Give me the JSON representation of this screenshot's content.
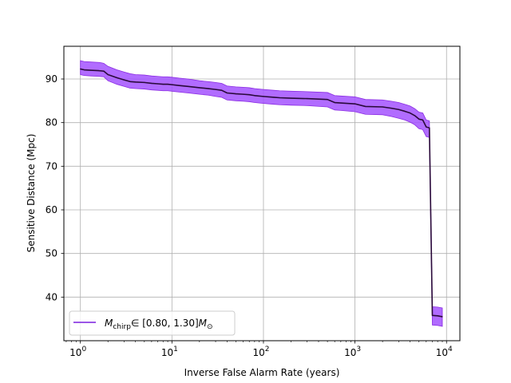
{
  "chart_data": {
    "type": "line",
    "xlabel": "Inverse False Alarm Rate (years)",
    "ylabel": "Sensitive Distance (Mpc)",
    "xscale": "log",
    "xlim": [
      0.66,
      14000
    ],
    "ylim": [
      30.0,
      97.5
    ],
    "grid": true,
    "legend_position": "lower-left",
    "x_ticks": [
      {
        "value": 1,
        "mantissa": "10",
        "exp": "0"
      },
      {
        "value": 10,
        "mantissa": "10",
        "exp": "1"
      },
      {
        "value": 100,
        "mantissa": "10",
        "exp": "2"
      },
      {
        "value": 1000,
        "mantissa": "10",
        "exp": "3"
      },
      {
        "value": 10000,
        "mantissa": "10",
        "exp": "4"
      }
    ],
    "y_ticks": [
      {
        "value": 40,
        "label": "40"
      },
      {
        "value": 50,
        "label": "50"
      },
      {
        "value": 60,
        "label": "60"
      },
      {
        "value": 70,
        "label": "70"
      },
      {
        "value": 80,
        "label": "80"
      },
      {
        "value": 90,
        "label": "90"
      }
    ],
    "legend": {
      "symbol": "M",
      "subscript": "chirp",
      "range_text": "∈ [0.80, 1.30]",
      "unit_symbol": "M",
      "unit_subscript": "⊙"
    },
    "colors": {
      "line": "#2a0a3a",
      "band": "#a352ff",
      "band_edge": "#8a2be2",
      "legend_line": "#7a1fdf",
      "grid": "#b0b0b0"
    },
    "series": [
      {
        "x": [
          1.0,
          1.1,
          1.3,
          1.6,
          1.8,
          2.0,
          2.5,
          3.0,
          3.5,
          4.0,
          5.0,
          6.0,
          7.0,
          8.0,
          9.0,
          10,
          12,
          15,
          20,
          25,
          30,
          35,
          40,
          50,
          60,
          70,
          80,
          100,
          130,
          150,
          200,
          300,
          500,
          600,
          700,
          1000,
          1300,
          2000,
          2500,
          3000,
          3500,
          4000,
          4500,
          5000,
          5500,
          6000,
          6500,
          7000,
          8000,
          9000
        ],
        "y": [
          92.3,
          92.1,
          92.0,
          91.9,
          91.8,
          91.0,
          90.3,
          89.8,
          89.4,
          89.3,
          89.2,
          89.0,
          88.9,
          88.8,
          88.8,
          88.7,
          88.5,
          88.3,
          88.0,
          87.8,
          87.6,
          87.4,
          86.8,
          86.6,
          86.5,
          86.4,
          86.2,
          86.0,
          85.8,
          85.7,
          85.6,
          85.5,
          85.3,
          84.6,
          84.5,
          84.3,
          83.7,
          83.6,
          83.3,
          83.0,
          82.6,
          82.2,
          81.6,
          80.8,
          80.6,
          79.0,
          78.8,
          35.8,
          35.7,
          35.5
        ],
        "lower": [
          91.0,
          90.8,
          90.7,
          90.6,
          90.5,
          89.6,
          88.8,
          88.3,
          87.9,
          87.8,
          87.7,
          87.5,
          87.4,
          87.3,
          87.3,
          87.2,
          87.0,
          86.8,
          86.5,
          86.3,
          86.0,
          85.8,
          85.2,
          85.0,
          84.9,
          84.8,
          84.6,
          84.4,
          84.2,
          84.1,
          84.0,
          83.9,
          83.6,
          82.9,
          82.8,
          82.5,
          81.9,
          81.8,
          81.4,
          81.0,
          80.6,
          80.1,
          79.5,
          78.6,
          78.4,
          76.8,
          76.6,
          33.6,
          33.5,
          33.3
        ],
        "upper": [
          94.2,
          94.0,
          93.9,
          93.8,
          93.6,
          92.9,
          92.1,
          91.6,
          91.2,
          91.0,
          90.9,
          90.7,
          90.6,
          90.5,
          90.5,
          90.4,
          90.2,
          90.0,
          89.6,
          89.4,
          89.2,
          89.0,
          88.4,
          88.2,
          88.1,
          88.0,
          87.8,
          87.6,
          87.4,
          87.3,
          87.2,
          87.1,
          86.9,
          86.2,
          86.1,
          85.9,
          85.3,
          85.2,
          84.9,
          84.6,
          84.2,
          83.8,
          83.2,
          82.4,
          82.2,
          80.6,
          80.4,
          37.8,
          37.7,
          37.5
        ]
      }
    ]
  }
}
